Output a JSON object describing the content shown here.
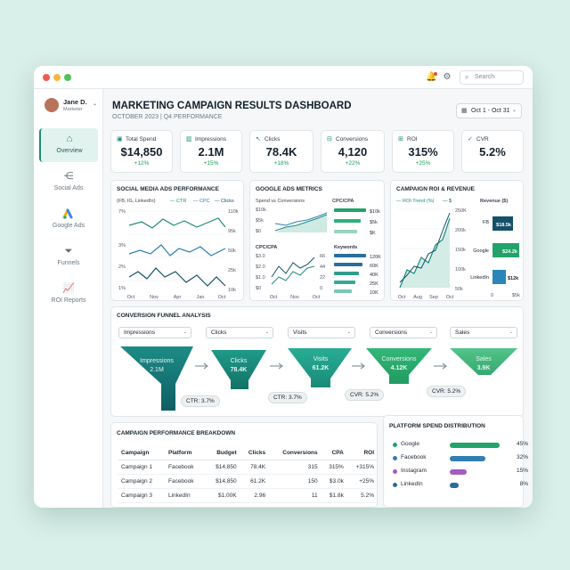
{
  "window": {
    "search_placeholder": "Search",
    "colors": {
      "accent": "#1d8c7a",
      "positive": "#1f9a5a"
    }
  },
  "user": {
    "name": "Jane D.",
    "role": "Marketer"
  },
  "sidebar": {
    "items": [
      {
        "label": "Overview",
        "icon": "home-icon",
        "active": true
      },
      {
        "label": "Social Ads",
        "icon": "share-icon"
      },
      {
        "label": "Google Ads",
        "icon": "google-ads-icon"
      },
      {
        "label": "Funnels",
        "icon": "funnel-icon"
      },
      {
        "label": "ROI Reports",
        "icon": "chart-icon"
      }
    ]
  },
  "header": {
    "title": "MARKETING CAMPAIGN RESULTS DASHBOARD",
    "subtitle": "OCTOBER 2023 | Q4 PERFORMANCE",
    "date_range": "Oct 1 - Oct 31"
  },
  "kpis": [
    {
      "label": "Total Spend",
      "value": "$14,850",
      "change": "+12%",
      "icon": "dollar-icon"
    },
    {
      "label": "Impressions",
      "value": "2.1M",
      "change": "+15%",
      "icon": "bar-icon"
    },
    {
      "label": "Clicks",
      "value": "78.4K",
      "change": "+18%",
      "icon": "cursor-icon"
    },
    {
      "label": "Conversions",
      "value": "4,120",
      "change": "+22%",
      "icon": "conversion-icon"
    },
    {
      "label": "ROI",
      "value": "315%",
      "change": "+25%",
      "icon": "roi-icon"
    },
    {
      "label": "CVR",
      "value": "5.2%",
      "change": "",
      "icon": "check-icon"
    }
  ],
  "social": {
    "title": "SOCIAL MEDIA ADS PERFORMANCE",
    "subtitle": "(FB, IG, LinkedIn)",
    "legend": [
      "CTR",
      "CPC",
      "Clicks"
    ],
    "left_ticks": [
      "7%",
      "3%",
      "2%",
      "1%"
    ],
    "right_ticks": [
      "110k",
      "95k",
      "50k",
      "25k",
      "10k"
    ],
    "x_ticks": [
      "Oct",
      "Nov",
      "Apr",
      "Jan",
      "Oct"
    ]
  },
  "google": {
    "title": "GOOGLE ADS METRICS",
    "sub1": "Spend vs Conversions",
    "sub1_ticks": [
      "$10k",
      "$5k",
      "$0"
    ],
    "cpc_label": "CPC/CPA",
    "cpc_ticks": [
      "$10k",
      "$5k",
      "$K"
    ],
    "sub3": "CPC/CPA",
    "sub3_ticks": [
      "$3.0",
      "$2.0",
      "$1.0",
      "$0"
    ],
    "sub3_right_ticks": [
      "66",
      "44",
      "22",
      "0"
    ],
    "x_ticks": [
      "Oct",
      "Nov",
      "Oct"
    ],
    "kw_label": "Keywords",
    "kw_ticks": [
      "120K",
      "60K",
      "40K",
      "25K",
      "10K"
    ]
  },
  "roi": {
    "title": "CAMPAIGN ROI & REVENUE",
    "legend": [
      "ROI Trend (%)",
      "$"
    ],
    "ticks": [
      "250K",
      "200k",
      "150k",
      "100k",
      "50k"
    ],
    "x_ticks": [
      "Oct",
      "Aug",
      "Sep",
      "Oct"
    ],
    "rev_label": "Revenue ($)",
    "rev_items": [
      {
        "name": "FB",
        "value": "$18.5k",
        "amount": 18.5
      },
      {
        "name": "Google",
        "value": "$24.2k",
        "amount": 24.2
      },
      {
        "name": "LinkedIn",
        "value": "$12k",
        "amount": 12
      }
    ],
    "rev_x_ticks": [
      "0",
      "$5k"
    ]
  },
  "funnel": {
    "title": "CONVERSION FUNNEL ANALYSIS",
    "selects": [
      "Impressions",
      "Clicks",
      "Visits",
      "Conversions",
      "Sales"
    ],
    "stages": [
      {
        "name": "Impressions",
        "value": "2.1M"
      },
      {
        "name": "Clicks",
        "value": "78.4K"
      },
      {
        "name": "Visits",
        "value": "61.2K"
      },
      {
        "name": "Conversions",
        "value": "4.12K"
      },
      {
        "name": "Sales",
        "value": "3.9K"
      }
    ],
    "rates": [
      "CTR: 3.7%",
      "CTR: 3.7%",
      "CVR: 5.2%",
      "CVR: 5.2%"
    ]
  },
  "breakdown": {
    "title": "CAMPAIGN PERFORMANCE BREAKDOWN",
    "columns": [
      "Campaign",
      "Platform",
      "Budget",
      "Clicks",
      "Conversions",
      "CPA",
      "ROI"
    ],
    "rows": [
      [
        "Campaign 1",
        "Facebook",
        "$14,850",
        "78.4K",
        "315",
        "315%",
        "+315%"
      ],
      [
        "Campaign 2",
        "Facebook",
        "$14,850",
        "61.2K",
        "150",
        "$3.0k",
        "+25%"
      ],
      [
        "Campaign 3",
        "LinkedIn",
        "$1,00K",
        "2.96",
        "11",
        "$1.8k",
        "5.2%"
      ]
    ]
  },
  "platform": {
    "title": "PLATFORM SPEND DISTRIBUTION",
    "items": [
      {
        "name": "Google",
        "pct": "45%",
        "share": 45,
        "color": "#22a36b"
      },
      {
        "name": "Facebook",
        "pct": "32%",
        "share": 32,
        "color": "#2f7fb0"
      },
      {
        "name": "Instagram",
        "pct": "15%",
        "share": 15,
        "color": "#a45bc2"
      },
      {
        "name": "LinkedIn",
        "pct": "8%",
        "share": 8,
        "color": "#2a6e9a"
      }
    ]
  }
}
